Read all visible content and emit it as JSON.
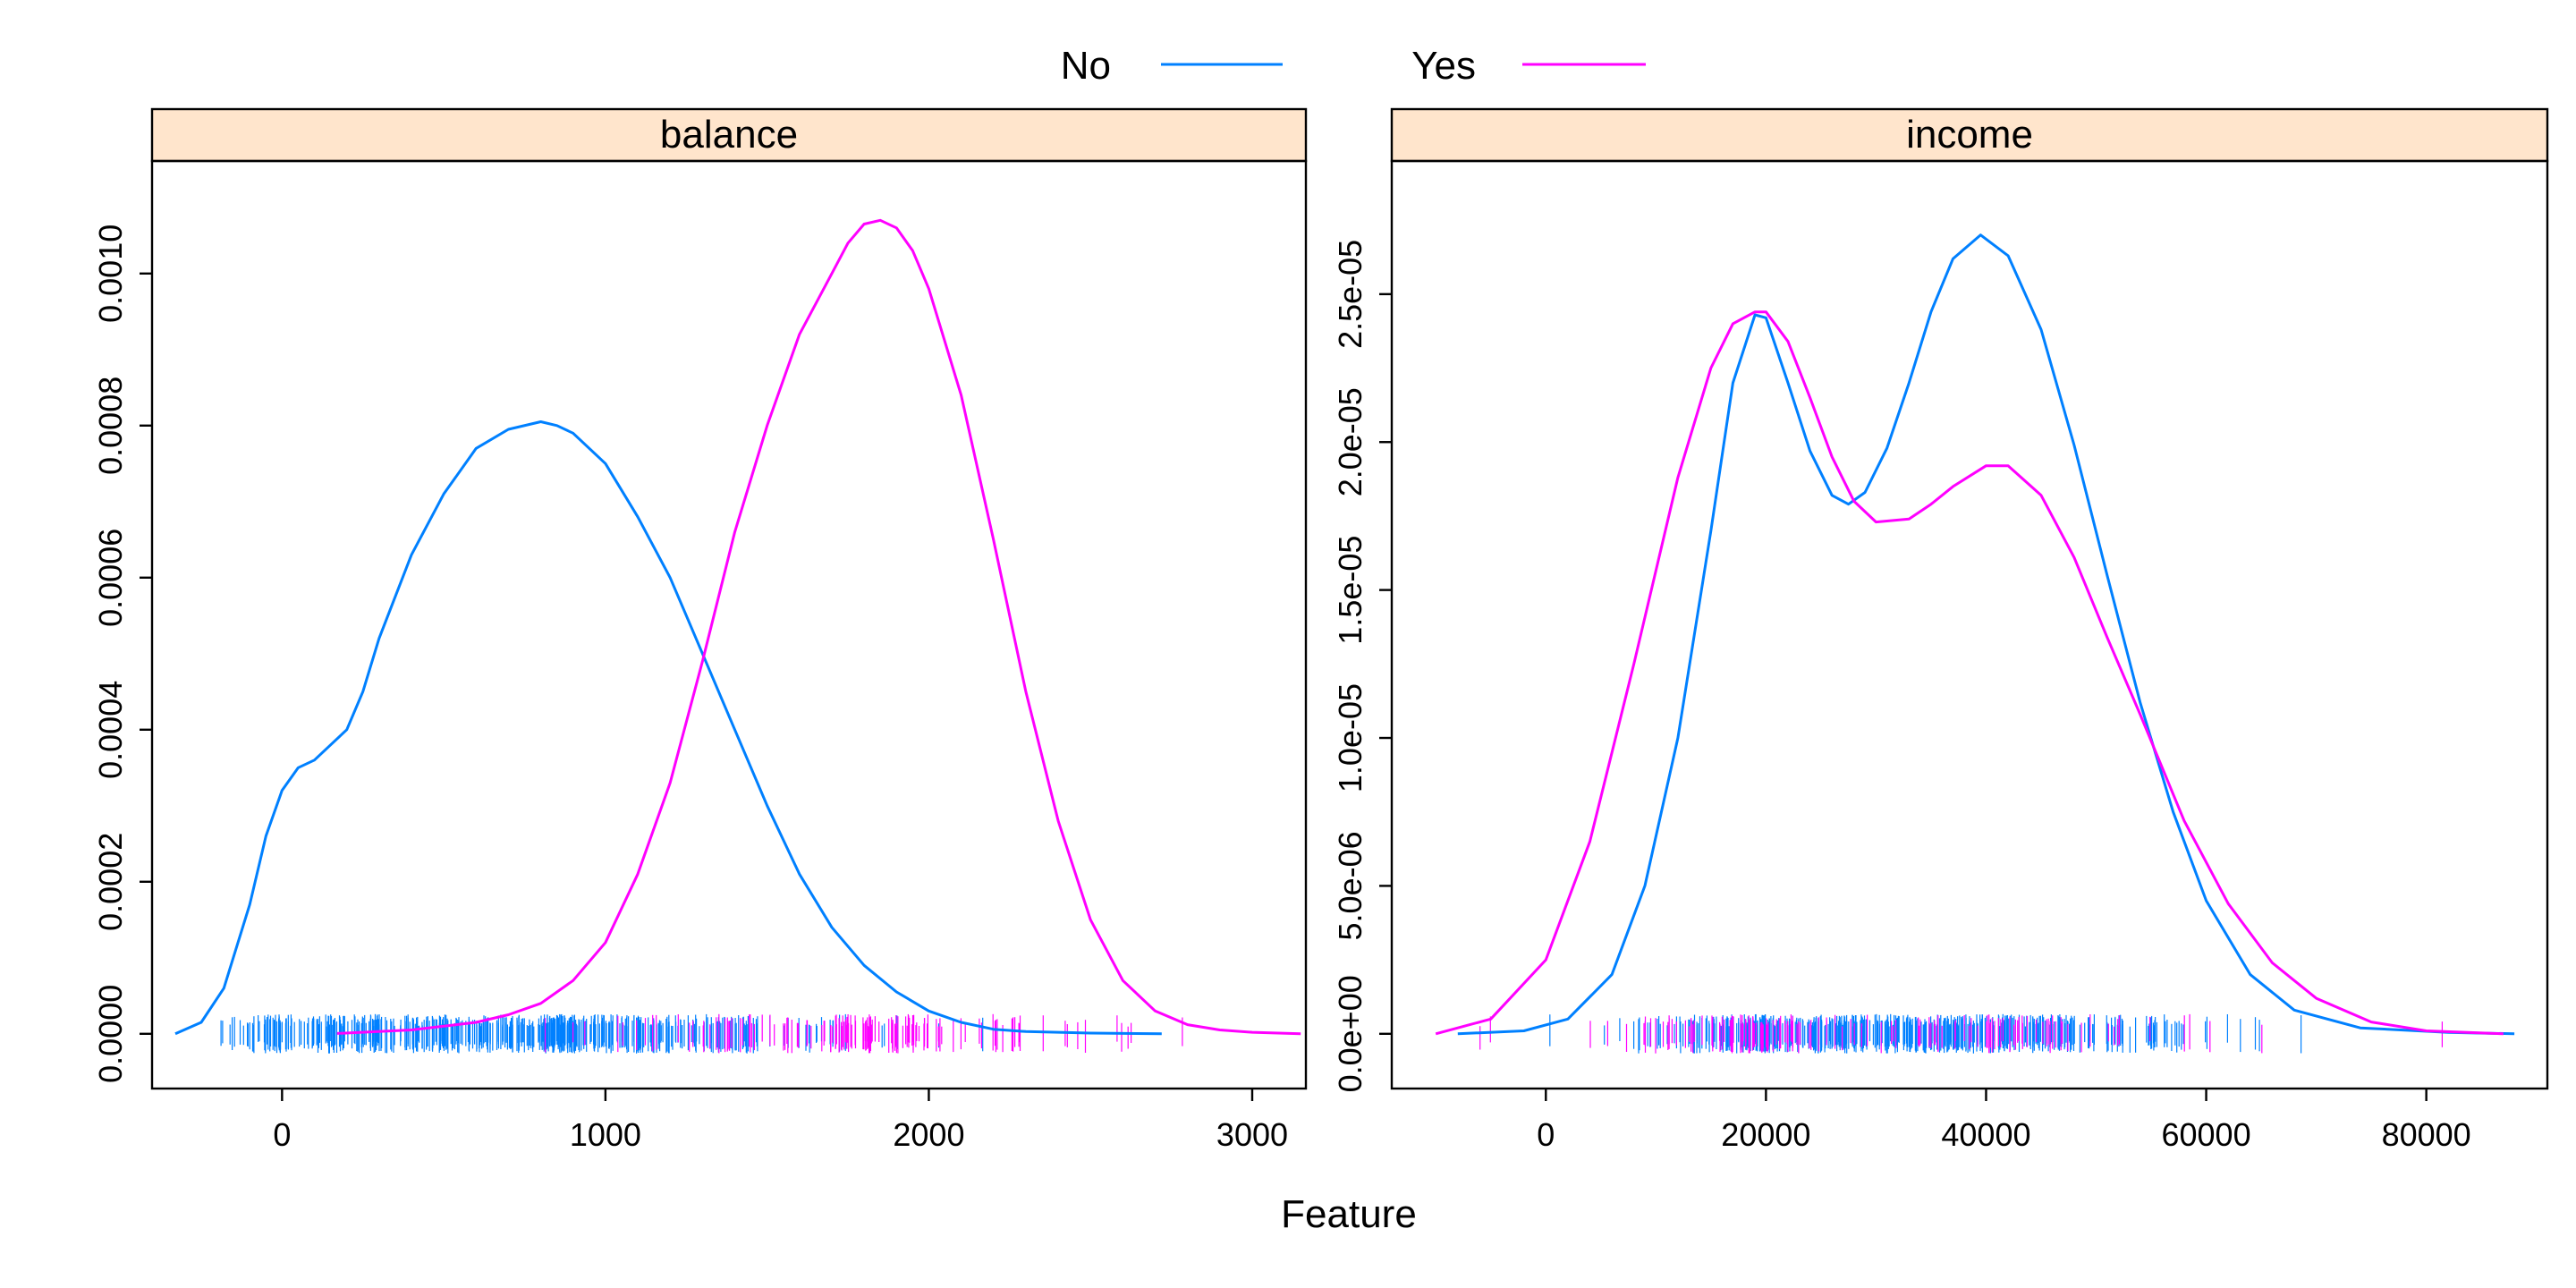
{
  "chart_data": {
    "type": "line",
    "xlabel": "Feature",
    "legend": {
      "position": "top",
      "entries": [
        {
          "name": "No",
          "color": "#0080ff"
        },
        {
          "name": "Yes",
          "color": "#ff00ff"
        }
      ]
    },
    "strip_color": "#ffe5cc",
    "panels": [
      {
        "strip": "balance",
        "xlim": [
          -402,
          3166
        ],
        "ylim": [
          -7.2e-05,
          0.001148
        ],
        "xticks": [
          0,
          1000,
          2000,
          3000
        ],
        "xtick_labels": [
          "0",
          "1000",
          "2000",
          "3000"
        ],
        "yticks": [
          0,
          0.0002,
          0.0004,
          0.0006,
          0.0008,
          0.001
        ],
        "ytick_labels": [
          "0.0000",
          "0.0002",
          "0.0004",
          "0.0006",
          "0.0008",
          "0.0010"
        ],
        "series": [
          {
            "name": "No",
            "color": "#0080ff",
            "x": [
              -330,
              -250,
              -180,
              -100,
              -50,
              0,
              50,
              100,
              150,
              200,
              250,
              300,
              400,
              500,
              600,
              700,
              800,
              850,
              900,
              1000,
              1100,
              1200,
              1300,
              1400,
              1500,
              1600,
              1700,
              1800,
              1900,
              2000,
              2100,
              2200,
              2300,
              2500,
              2720
            ],
            "y": [
              0,
              1.5e-05,
              6e-05,
              0.00017,
              0.00026,
              0.00032,
              0.00035,
              0.00036,
              0.00038,
              0.0004,
              0.00045,
              0.00052,
              0.00063,
              0.00071,
              0.00077,
              0.000795,
              0.000805,
              0.0008,
              0.00079,
              0.00075,
              0.00068,
              0.0006,
              0.0005,
              0.0004,
              0.0003,
              0.00021,
              0.00014,
              9e-05,
              5.5e-05,
              3e-05,
              1.5e-05,
              6e-06,
              3e-06,
              1e-06,
              0
            ]
          },
          {
            "name": "Yes",
            "color": "#ff00ff",
            "x": [
              170,
              400,
              600,
              700,
              800,
              900,
              1000,
              1100,
              1200,
              1300,
              1400,
              1500,
              1600,
              1700,
              1750,
              1800,
              1850,
              1900,
              1950,
              2000,
              2100,
              2200,
              2300,
              2400,
              2500,
              2600,
              2700,
              2800,
              2900,
              3000,
              3150
            ],
            "y": [
              5e-07,
              5e-06,
              1.5e-05,
              2.5e-05,
              4e-05,
              7e-05,
              0.00012,
              0.00021,
              0.00033,
              0.00049,
              0.00066,
              0.0008,
              0.00092,
              0.001,
              0.00104,
              0.001065,
              0.00107,
              0.00106,
              0.00103,
              0.00098,
              0.00084,
              0.00065,
              0.00045,
              0.00028,
              0.00015,
              7e-05,
              3e-05,
              1.2e-05,
              5e-06,
              2e-06,
              0
            ]
          }
        ]
      },
      {
        "strip": "income",
        "xlim": [
          -14000,
          91000
        ],
        "ylim": [
          -1.85e-06,
          2.95e-05
        ],
        "xticks": [
          0,
          20000,
          40000,
          60000,
          80000
        ],
        "xtick_labels": [
          "0",
          "20000",
          "40000",
          "60000",
          "80000"
        ],
        "yticks": [
          0,
          5e-06,
          1e-05,
          1.5e-05,
          2e-05,
          2.5e-05
        ],
        "ytick_labels": [
          "0.0e+00",
          "5.0e-06",
          "1.0e-05",
          "1.5e-05",
          "2.0e-05",
          "2.5e-05"
        ],
        "series": [
          {
            "name": "No",
            "color": "#0080ff",
            "x": [
              -8000,
              -2000,
              2000,
              6000,
              9000,
              12000,
              15000,
              17000,
              19000,
              20000,
              22000,
              24000,
              26000,
              27500,
              29000,
              31000,
              33000,
              35000,
              37000,
              39500,
              42000,
              45000,
              48000,
              51000,
              54000,
              57000,
              60000,
              64000,
              68000,
              74000,
              82000,
              88000
            ],
            "y": [
              0,
              1e-07,
              5e-07,
              2e-06,
              5e-06,
              1e-05,
              1.7e-05,
              2.2e-05,
              2.43e-05,
              2.42e-05,
              2.2e-05,
              1.97e-05,
              1.82e-05,
              1.79e-05,
              1.83e-05,
              1.98e-05,
              2.2e-05,
              2.44e-05,
              2.62e-05,
              2.7e-05,
              2.63e-05,
              2.38e-05,
              1.99e-05,
              1.55e-05,
              1.12e-05,
              7.5e-06,
              4.5e-06,
              2e-06,
              8e-07,
              2e-07,
              5e-08,
              0
            ]
          },
          {
            "name": "Yes",
            "color": "#ff00ff",
            "x": [
              -10000,
              -5000,
              0,
              4000,
              8000,
              12000,
              15000,
              17000,
              19000,
              20000,
              22000,
              24000,
              26000,
              28000,
              30000,
              33000,
              35000,
              37000,
              40000,
              42000,
              45000,
              48000,
              51000,
              54000,
              58000,
              62000,
              66000,
              70000,
              75000,
              80000,
              87000
            ],
            "y": [
              0,
              5e-07,
              2.5e-06,
              6.5e-06,
              1.25e-05,
              1.88e-05,
              2.25e-05,
              2.4e-05,
              2.44e-05,
              2.44e-05,
              2.34e-05,
              2.15e-05,
              1.95e-05,
              1.8e-05,
              1.73e-05,
              1.74e-05,
              1.79e-05,
              1.85e-05,
              1.92e-05,
              1.92e-05,
              1.82e-05,
              1.61e-05,
              1.34e-05,
              1.08e-05,
              7.2e-06,
              4.4e-06,
              2.4e-06,
              1.2e-06,
              4e-07,
              1e-07,
              0
            ]
          }
        ]
      }
    ]
  }
}
